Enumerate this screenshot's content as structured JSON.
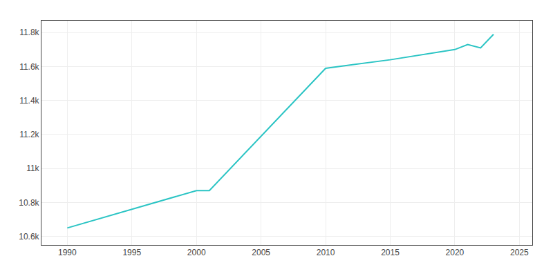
{
  "chart_data": {
    "type": "line",
    "x": [
      1990,
      2000,
      2001,
      2010,
      2015,
      2020,
      2021,
      2022,
      2023
    ],
    "values": [
      10650,
      10870,
      10870,
      11590,
      11640,
      11700,
      11730,
      11710,
      11790
    ],
    "color": "#2ac4c4",
    "xlim": [
      1988,
      2026
    ],
    "ylim": [
      10550,
      11870
    ],
    "xticks": [
      1990,
      1995,
      2000,
      2005,
      2010,
      2015,
      2020,
      2025
    ],
    "yticks": [
      {
        "value": 10600,
        "label": "10.6k"
      },
      {
        "value": 10800,
        "label": "10.8k"
      },
      {
        "value": 11000,
        "label": "11k"
      },
      {
        "value": 11200,
        "label": "11.2k"
      },
      {
        "value": 11400,
        "label": "11.4k"
      },
      {
        "value": 11600,
        "label": "11.6k"
      },
      {
        "value": 11800,
        "label": "11.8k"
      }
    ],
    "grid": true
  }
}
